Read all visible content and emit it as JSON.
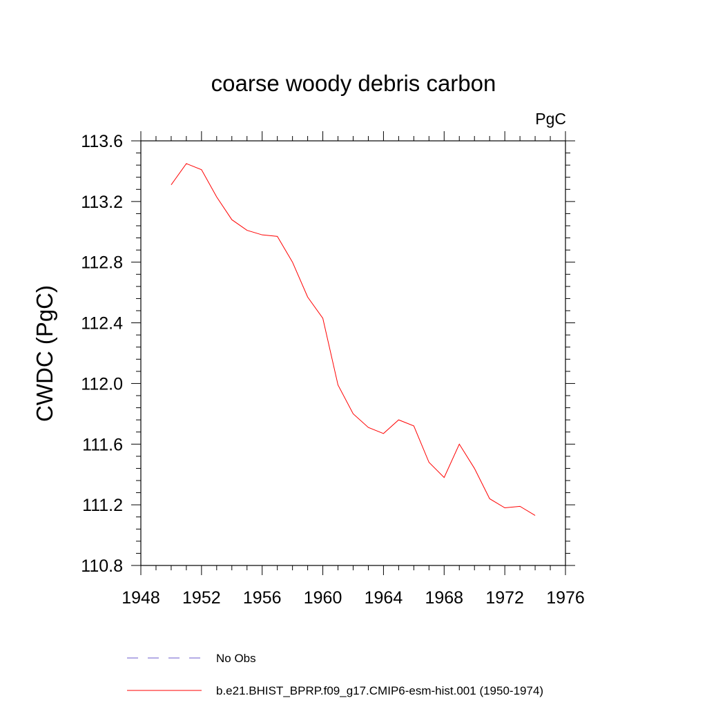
{
  "chart_data": {
    "type": "line",
    "title": "coarse woody debris carbon",
    "units_label": "PgC",
    "ylabel": "CWDC  (PgC)",
    "xlabel": "",
    "xlim": [
      1948,
      1976
    ],
    "ylim": [
      110.8,
      113.6
    ],
    "x_ticks": [
      1948,
      1952,
      1956,
      1960,
      1964,
      1968,
      1972,
      1976
    ],
    "y_ticks": [
      "110.8",
      "111.2",
      "111.6",
      "112.0",
      "112.4",
      "112.8",
      "113.2",
      "113.6"
    ],
    "grid": false,
    "legend_position": "bottom",
    "series": [
      {
        "name": "No Obs",
        "style": "dashed",
        "color": "#6a5acd",
        "x": [],
        "values": []
      },
      {
        "name": "b.e21.BHIST_BPRP.f09_g17.CMIP6-esm-hist.001 (1950-1974)",
        "style": "solid",
        "color": "#ff0000",
        "x": [
          1950,
          1951,
          1952,
          1953,
          1954,
          1955,
          1956,
          1957,
          1958,
          1959,
          1960,
          1961,
          1962,
          1963,
          1964,
          1965,
          1966,
          1967,
          1968,
          1969,
          1970,
          1971,
          1972,
          1973,
          1974
        ],
        "values": [
          113.31,
          113.45,
          113.41,
          113.23,
          113.08,
          113.01,
          112.98,
          112.97,
          112.8,
          112.57,
          112.43,
          111.99,
          111.8,
          111.71,
          111.67,
          111.76,
          111.72,
          111.48,
          111.38,
          111.6,
          111.44,
          111.24,
          111.18,
          111.19,
          111.13
        ]
      }
    ]
  }
}
